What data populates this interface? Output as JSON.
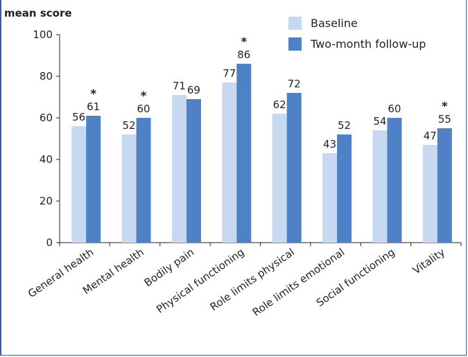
{
  "chart_data": {
    "type": "bar",
    "ylabel": "mean score",
    "ylim": [
      0,
      100
    ],
    "yticks": [
      0,
      20,
      40,
      60,
      80,
      100
    ],
    "categories": [
      "General health",
      "Mental health",
      "Bodily pain",
      "Physical functioning",
      "Role limits physical",
      "Role limits emotional",
      "Social functioning",
      "Vitality"
    ],
    "series": [
      {
        "name": "Baseline",
        "color": "#c6d9f0",
        "values": [
          56,
          52,
          71,
          77,
          62,
          43,
          54,
          47
        ]
      },
      {
        "name": "Two-month follow-up",
        "color": "#4f81c7",
        "values": [
          61,
          60,
          69,
          86,
          72,
          52,
          60,
          55
        ]
      }
    ],
    "significance_marker": "*",
    "significant": [
      true,
      true,
      false,
      true,
      false,
      false,
      false,
      true
    ],
    "legend_position": "top-right",
    "grid": false
  }
}
